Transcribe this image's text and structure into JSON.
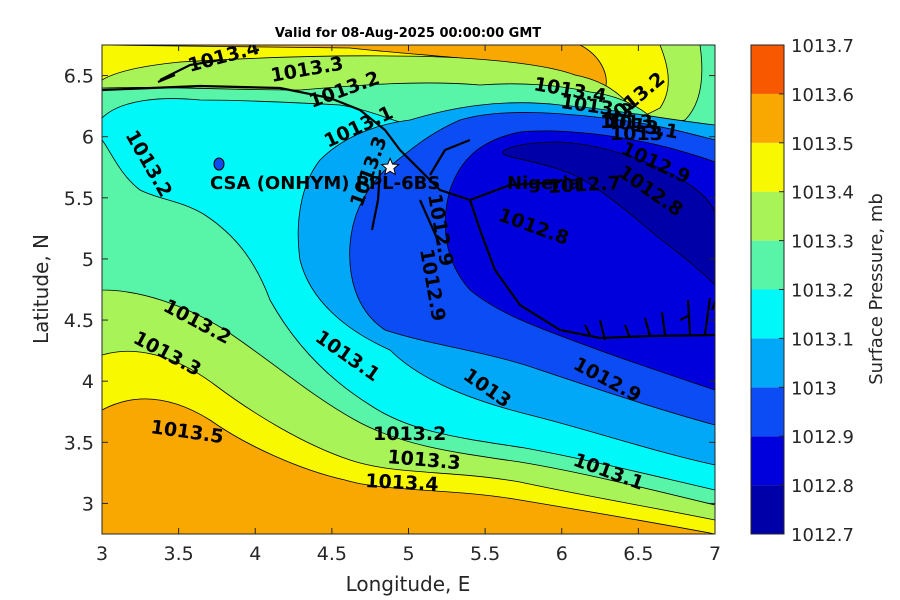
{
  "chart_data": {
    "type": "contour",
    "title": "Valid for 08-Aug-2025 00:00:00 GMT",
    "xlabel": "Longitude, E",
    "ylabel": "Latitude, N",
    "xlim": [
      3,
      7
    ],
    "ylim": [
      2.75,
      6.75
    ],
    "xticks": [
      "3",
      "3.5",
      "4",
      "4.5",
      "5",
      "5.5",
      "6",
      "6.5",
      "7"
    ],
    "yticks": [
      "3",
      "3.5",
      "4",
      "4.5",
      "5",
      "5.5",
      "6",
      "6.5"
    ],
    "colorbar": {
      "label": "Surface Pressure, mb",
      "levels": [
        "1012.7",
        "1012.8",
        "1012.9",
        "1013",
        "1013.1",
        "1013.2",
        "1013.3",
        "1013.4",
        "1013.5",
        "1013.6",
        "1013.7"
      ],
      "colors": [
        "#0000a8",
        "#0000dd",
        "#0b4cf4",
        "#02a8f8",
        "#00f8f8",
        "#58f4a8",
        "#a8f458",
        "#f8f800",
        "#f8a800",
        "#f85800",
        "#f80000"
      ]
    },
    "contour_labels": [
      "1013.4",
      "1013.3",
      "1013.2",
      "1013.1",
      "1013.2",
      "1013.4",
      "1013.3",
      "1013.2",
      "1013.1",
      "1013",
      "1012.9",
      "1012.8",
      "1012.7",
      "1012.8",
      "1012.9",
      "1013",
      "1013.1",
      "1013.2",
      "1013.3",
      "1013.5",
      "1013.2",
      "1013.3",
      "1013.4",
      "1013.1",
      "1013",
      "1012.9",
      "1013.3",
      "1012.9"
    ],
    "station": {
      "name": "CSA (ONHYM) PPL-6BS",
      "lon": 4.88,
      "lat": 5.75
    },
    "place_labels": [
      "Nigeria"
    ]
  }
}
